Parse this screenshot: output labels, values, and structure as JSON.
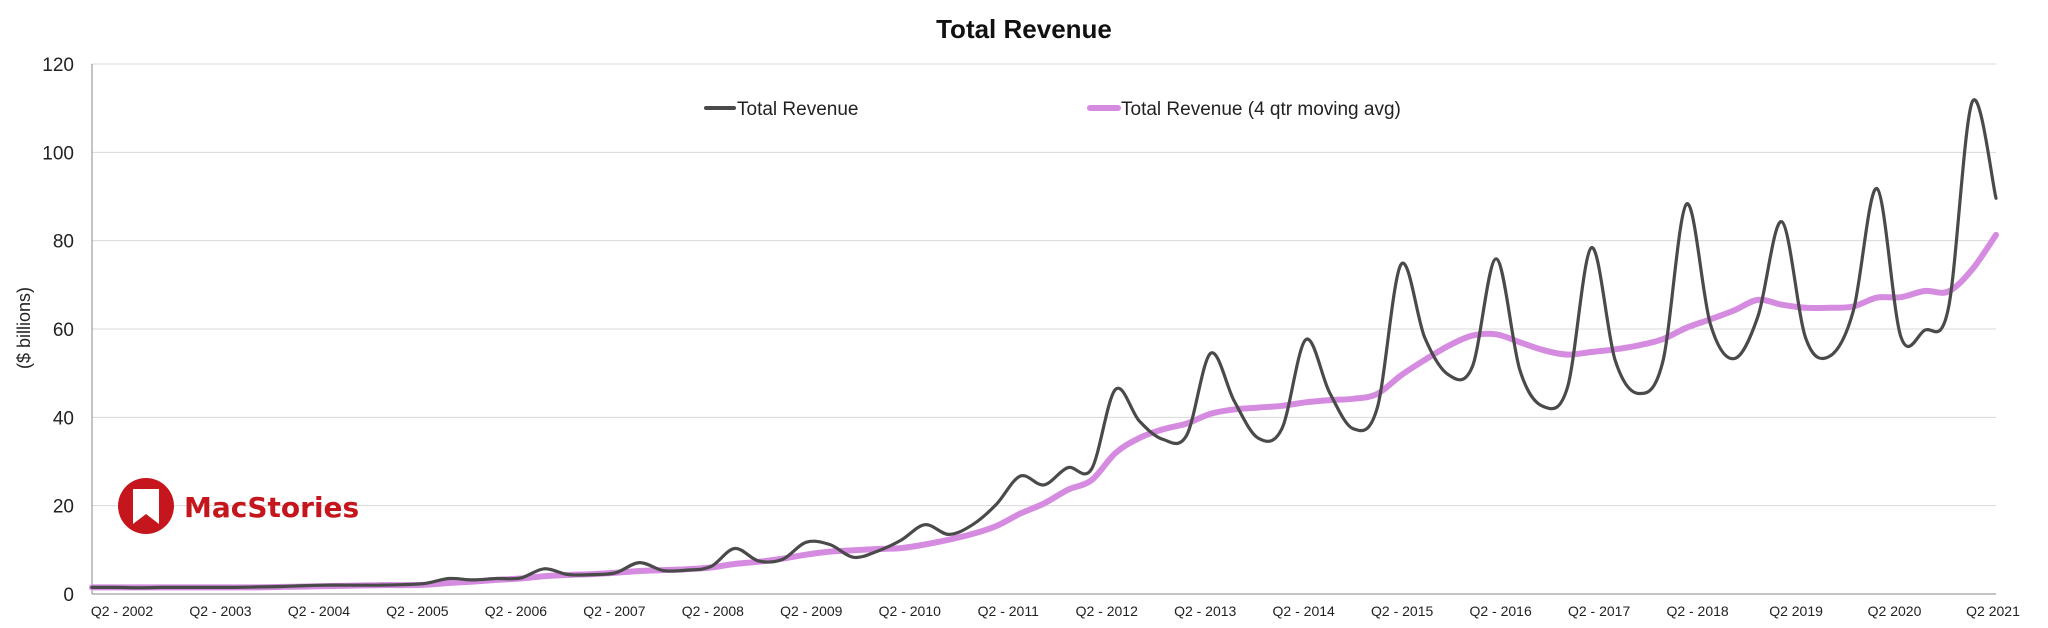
{
  "colors": {
    "revenue": "#4a4a4a",
    "moving_avg": "#d58be0",
    "logo": "#c4161c"
  },
  "logo": {
    "text": "MacStories",
    "icon": "bookmark-icon"
  },
  "chart_data": {
    "type": "line",
    "title": "Total Revenue",
    "xlabel": "",
    "ylabel": "($ billions)",
    "ylim": [
      0,
      120
    ],
    "yticks": [
      0,
      20,
      40,
      60,
      80,
      100,
      120
    ],
    "grid": true,
    "legend_position": "top",
    "x_tick_labels": [
      "Q2 - 2002",
      "Q2 - 2003",
      "Q2 - 2004",
      "Q2 - 2005",
      "Q2 - 2006",
      "Q2 - 2007",
      "Q2 - 2008",
      "Q2 - 2009",
      "Q2 - 2010",
      "Q2 - 2011",
      "Q2 - 2012",
      "Q2 - 2013",
      "Q2 - 2014",
      "Q2 - 2015",
      "Q2 - 2016",
      "Q2 - 2017",
      "Q2 - 2018",
      "Q2 2019",
      "Q2 2020",
      "Q2 2021"
    ],
    "series": [
      {
        "name": "Total Revenue",
        "values": [
          1.5,
          1.5,
          1.4,
          1.5,
          1.5,
          1.5,
          1.5,
          1.6,
          1.7,
          1.9,
          2.0,
          2.0,
          2.0,
          2.1,
          2.4,
          3.5,
          3.2,
          3.5,
          3.6,
          5.7,
          4.4,
          4.4,
          4.8,
          7.1,
          5.3,
          5.4,
          6.2,
          10.3,
          7.5,
          7.8,
          11.7,
          11.2,
          8.3,
          9.7,
          12.2,
          15.7,
          13.5,
          15.7,
          20.3,
          26.7,
          24.7,
          28.6,
          28.3,
          46.3,
          39.2,
          35.0,
          36.0,
          54.5,
          43.6,
          35.3,
          37.5,
          57.6,
          45.6,
          37.4,
          42.1,
          74.6,
          58.0,
          49.6,
          51.5,
          75.9,
          50.6,
          42.4,
          46.9,
          78.4,
          52.9,
          45.4,
          52.6,
          88.3,
          61.1,
          53.3,
          62.9,
          84.3,
          58.0,
          53.8,
          64.0,
          91.8,
          58.3,
          59.7,
          64.7,
          111.4,
          89.6
        ]
      },
      {
        "name": "Total Revenue (4 qtr moving avg)",
        "values": [
          1.5,
          1.5,
          1.5,
          1.5,
          1.5,
          1.5,
          1.5,
          1.5,
          1.6,
          1.7,
          1.8,
          1.9,
          2.0,
          2.0,
          2.1,
          2.5,
          2.8,
          3.2,
          3.5,
          4.0,
          4.3,
          4.5,
          4.8,
          5.2,
          5.4,
          5.6,
          6.0,
          6.8,
          7.3,
          8.0,
          8.9,
          9.6,
          9.9,
          10.2,
          10.4,
          11.2,
          12.3,
          13.6,
          15.4,
          18.2,
          20.5,
          23.6,
          25.8,
          31.9,
          35.3,
          37.3,
          38.6,
          40.8,
          41.8,
          42.2,
          42.6,
          43.4,
          43.9,
          44.2,
          45.3,
          49.5,
          53.0,
          56.2,
          58.5,
          58.8,
          57.0,
          55.2,
          54.2,
          54.8,
          55.4,
          56.3,
          57.7,
          60.3,
          62.2,
          64.2,
          66.6,
          65.5,
          64.8,
          64.8,
          65.1,
          67.1,
          67.2,
          68.6,
          68.5,
          73.5,
          81.3
        ]
      }
    ]
  }
}
